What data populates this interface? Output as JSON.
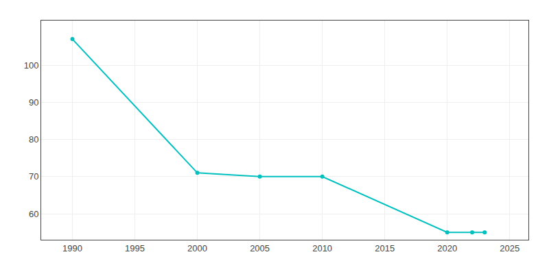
{
  "chart_data": {
    "type": "line",
    "x": [
      1990,
      2000,
      2005,
      2010,
      2020,
      2022,
      2023
    ],
    "values": [
      107,
      71,
      70,
      70,
      55,
      55,
      55
    ],
    "color": "#00C0C0",
    "marker": "circle",
    "xlim": [
      1987.5,
      2026.5
    ],
    "ylim": [
      53,
      112
    ],
    "xticks": [
      1990,
      1995,
      2000,
      2005,
      2010,
      2015,
      2020,
      2025
    ],
    "yticks": [
      60,
      70,
      80,
      90,
      100
    ],
    "grid": true
  }
}
